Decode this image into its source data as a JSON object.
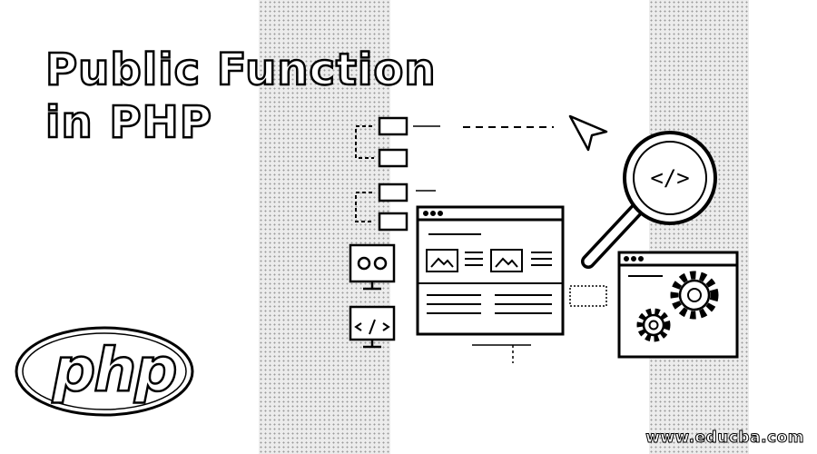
{
  "banner": {
    "title_line1": "Public Function",
    "title_line2": "in PHP",
    "logo_text": "php",
    "code_symbol": "</>",
    "site_url": "www.educba.com"
  },
  "illustration": {
    "icons": [
      "flowchart-icon",
      "cursor-icon",
      "magnifier-icon",
      "browser-window-icon",
      "monitor-icon",
      "gear-icon"
    ]
  }
}
